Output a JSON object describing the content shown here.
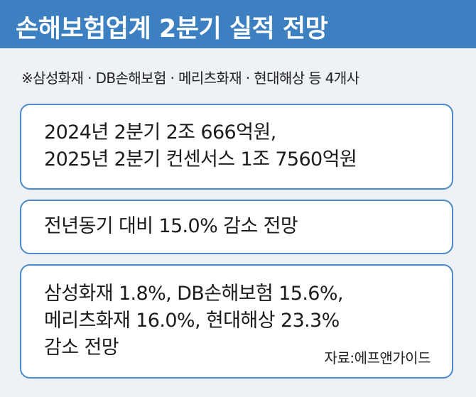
{
  "header": {
    "title": "손해보험업계 2분기 실적 전망",
    "subtitle": "※삼성화재 · DB손해보험 · 메리츠화재 · 현대해상 등 4개사"
  },
  "boxes": [
    {
      "lines": [
        "2024년 2분기 2조 666억원,",
        "2025년 2분기 컨센서스 1조 7560억원"
      ]
    },
    {
      "lines": [
        "전년동기 대비 15.0% 감소 전망"
      ]
    },
    {
      "lines": [
        "삼성화재 1.8%, DB손해보험 15.6%,",
        "메리츠화재 16.0%, 현대해상 23.3%",
        "감소 전망"
      ]
    }
  ],
  "source": "자료:에프앤가이드"
}
